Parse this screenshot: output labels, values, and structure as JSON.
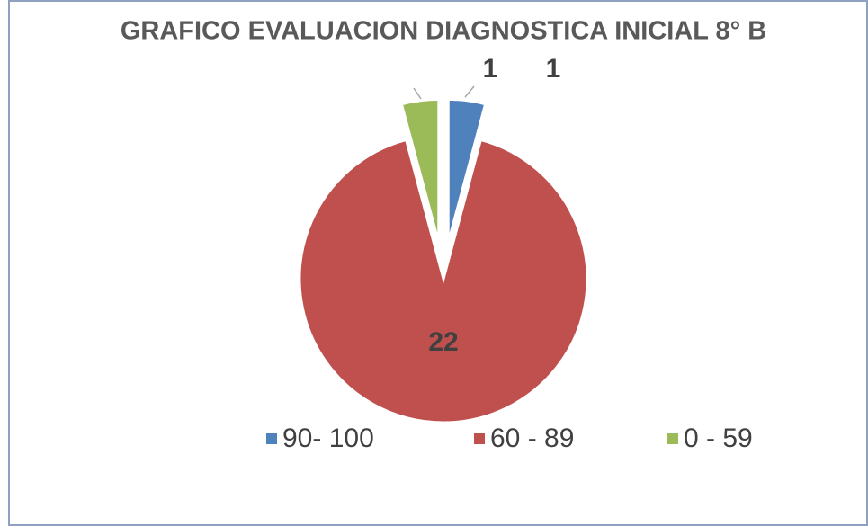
{
  "chart_data": {
    "type": "pie",
    "title": "GRAFICO EVALUACION DIAGNOSTICA INICIAL 8° B",
    "categories": [
      "90- 100",
      "60 - 89",
      "0 - 59"
    ],
    "values": [
      1,
      22,
      1
    ],
    "colors": [
      "#4f81bd",
      "#c0504d",
      "#9bbb59"
    ],
    "legend": "bottom"
  }
}
